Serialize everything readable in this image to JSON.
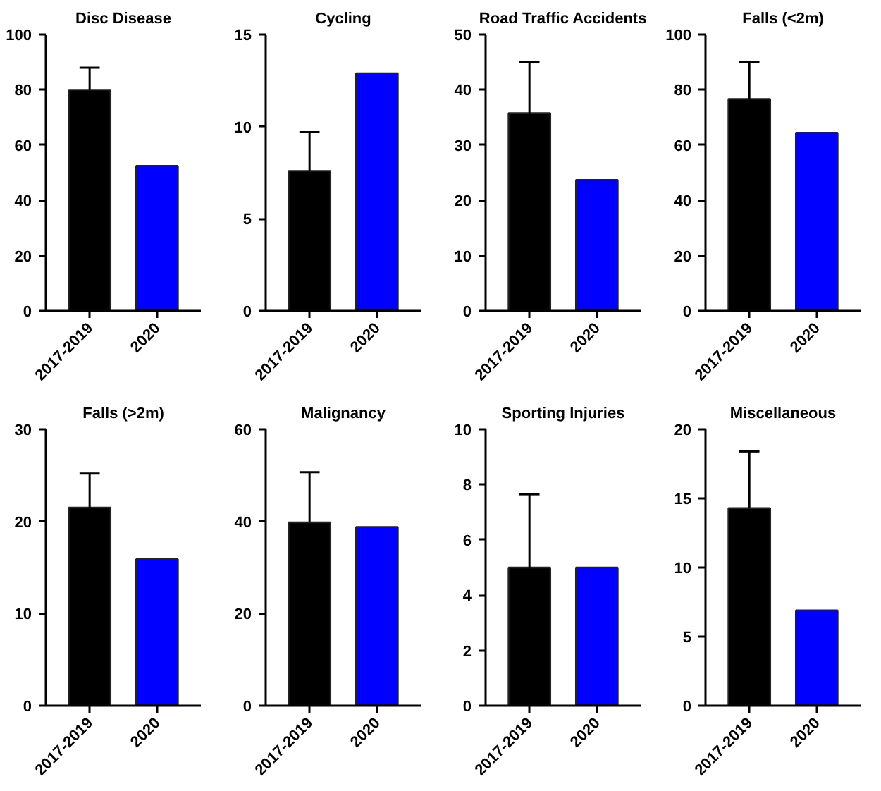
{
  "chart_data": [
    {
      "type": "bar",
      "title": "Disc Disease",
      "categories": [
        "2017-2019",
        "2020"
      ],
      "values": [
        80,
        52.5
      ],
      "colors": [
        "#000000",
        "#0000ff"
      ],
      "errors": [
        [
          80,
          88
        ],
        null
      ],
      "ylim": [
        0,
        100
      ],
      "yticks": [
        0,
        20,
        40,
        60,
        80,
        100
      ]
    },
    {
      "type": "bar",
      "title": "Cycling",
      "categories": [
        "2017-2019",
        "2020"
      ],
      "values": [
        7.6,
        12.9
      ],
      "colors": [
        "#000000",
        "#0000ff"
      ],
      "errors": [
        [
          7.6,
          9.7
        ],
        null
      ],
      "ylim": [
        0,
        15
      ],
      "yticks": [
        0,
        5,
        10,
        15
      ]
    },
    {
      "type": "bar",
      "title": "Road Traffic Accidents",
      "categories": [
        "2017-2019",
        "2020"
      ],
      "values": [
        35.8,
        23.7
      ],
      "colors": [
        "#000000",
        "#0000ff"
      ],
      "errors": [
        [
          35.8,
          45
        ],
        null
      ],
      "ylim": [
        0,
        50
      ],
      "yticks": [
        0,
        10,
        20,
        30,
        40,
        50
      ]
    },
    {
      "type": "bar",
      "title": "Falls (<2m)",
      "categories": [
        "2017-2019",
        "2020"
      ],
      "values": [
        76.7,
        64.5
      ],
      "colors": [
        "#000000",
        "#0000ff"
      ],
      "errors": [
        [
          76.7,
          90
        ],
        null
      ],
      "ylim": [
        0,
        100
      ],
      "yticks": [
        0,
        20,
        40,
        60,
        80,
        100
      ]
    },
    {
      "type": "bar",
      "title": "Falls (>2m)",
      "categories": [
        "2017-2019",
        "2020"
      ],
      "values": [
        21.5,
        15.9
      ],
      "colors": [
        "#000000",
        "#0000ff"
      ],
      "errors": [
        [
          21.5,
          25.2
        ],
        null
      ],
      "ylim": [
        0,
        30
      ],
      "yticks": [
        0,
        10,
        20,
        30
      ]
    },
    {
      "type": "bar",
      "title": "Malignancy",
      "categories": [
        "2017-2019",
        "2020"
      ],
      "values": [
        39.8,
        38.8
      ],
      "colors": [
        "#000000",
        "#0000ff"
      ],
      "errors": [
        [
          39.8,
          50.7
        ],
        null
      ],
      "ylim": [
        0,
        60
      ],
      "yticks": [
        0,
        20,
        40,
        60
      ]
    },
    {
      "type": "bar",
      "title": "Sporting Injuries",
      "categories": [
        "2017-2019",
        "2020"
      ],
      "values": [
        5.0,
        5.0
      ],
      "colors": [
        "#000000",
        "#0000ff"
      ],
      "errors": [
        [
          5.0,
          7.65
        ],
        null
      ],
      "ylim": [
        0,
        10
      ],
      "yticks": [
        0,
        2,
        4,
        6,
        8,
        10
      ]
    },
    {
      "type": "bar",
      "title": "Miscellaneous",
      "categories": [
        "2017-2019",
        "2020"
      ],
      "values": [
        14.3,
        6.9
      ],
      "colors": [
        "#000000",
        "#0000ff"
      ],
      "errors": [
        [
          14.3,
          18.4
        ],
        null
      ],
      "ylim": [
        0,
        20
      ],
      "yticks": [
        0,
        5,
        10,
        15,
        20
      ]
    }
  ]
}
